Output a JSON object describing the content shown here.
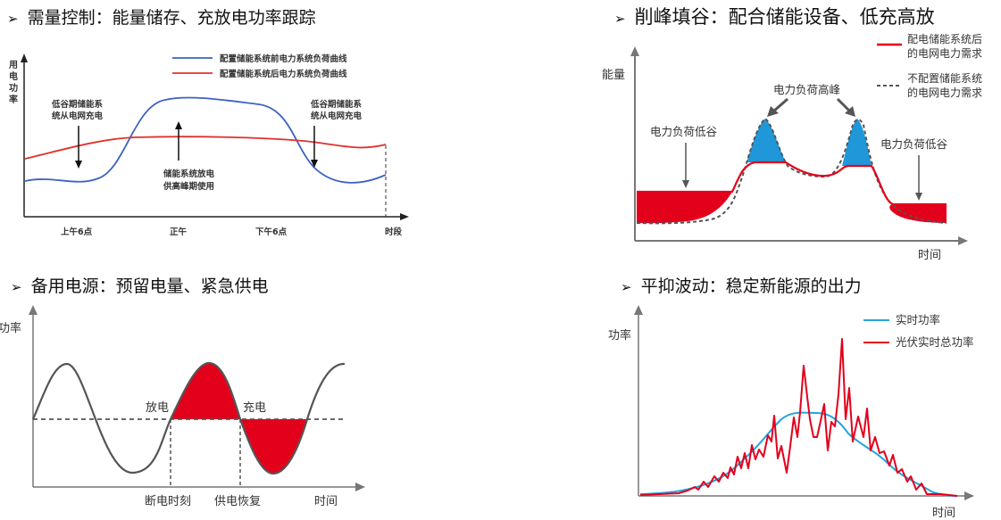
{
  "panels": {
    "demand": {
      "title": "需量控制：能量储存、充放电功率跟踪",
      "ylabel_lines": [
        "用",
        "电",
        "功",
        "率"
      ],
      "xlabel": "时段",
      "xticks": [
        "上午6点",
        "正午",
        "下午6点"
      ],
      "legend": [
        "配置储能系统前电力系统负荷曲线",
        "配置储能系统后电力系统负荷曲线"
      ],
      "annotations": {
        "left_lines": [
          "低谷期储能系",
          "统从电网充电"
        ],
        "middle_lines": [
          "储能系统放电",
          "供高峰期使用"
        ],
        "right_lines": [
          "低谷期储能系",
          "统从电网充电"
        ]
      },
      "colors": {
        "before": "#3b62c4",
        "after": "#e0312b"
      }
    },
    "peak": {
      "title": "削峰填谷：配合储能设备、低充高放",
      "ylabel": "能量",
      "xlabel": "时间",
      "legend": [
        [
          "配电储能系统后",
          "的电网电力需求"
        ],
        [
          "不配置储能系统",
          "的电网电力需求"
        ]
      ],
      "annotations": {
        "peak": "电力负荷高峰",
        "valley_left": "电力负荷低谷",
        "valley_right": "电力负荷低谷"
      },
      "colors": {
        "fill_red": "#e3001b",
        "fill_blue": "#1f97d9",
        "line": "#e3001b",
        "dash": "#555555"
      }
    },
    "backup": {
      "title": "备用电源：预留电量、紧急供电",
      "ylabel": "功率",
      "xlabel": "时间",
      "labels": {
        "discharge": "放电",
        "charge": "充电",
        "outage": "断电时刻",
        "restore": "供电恢复"
      },
      "colors": {
        "fill": "#e3001b",
        "curve": "#555555"
      }
    },
    "smooth": {
      "title": "平抑波动：稳定新能源的出力",
      "ylabel": "功率",
      "xlabel": "时间",
      "legend": [
        "实时功率",
        "光伏实时总功率"
      ],
      "colors": {
        "blue": "#26a3e0",
        "red": "#e3001b"
      }
    }
  }
}
